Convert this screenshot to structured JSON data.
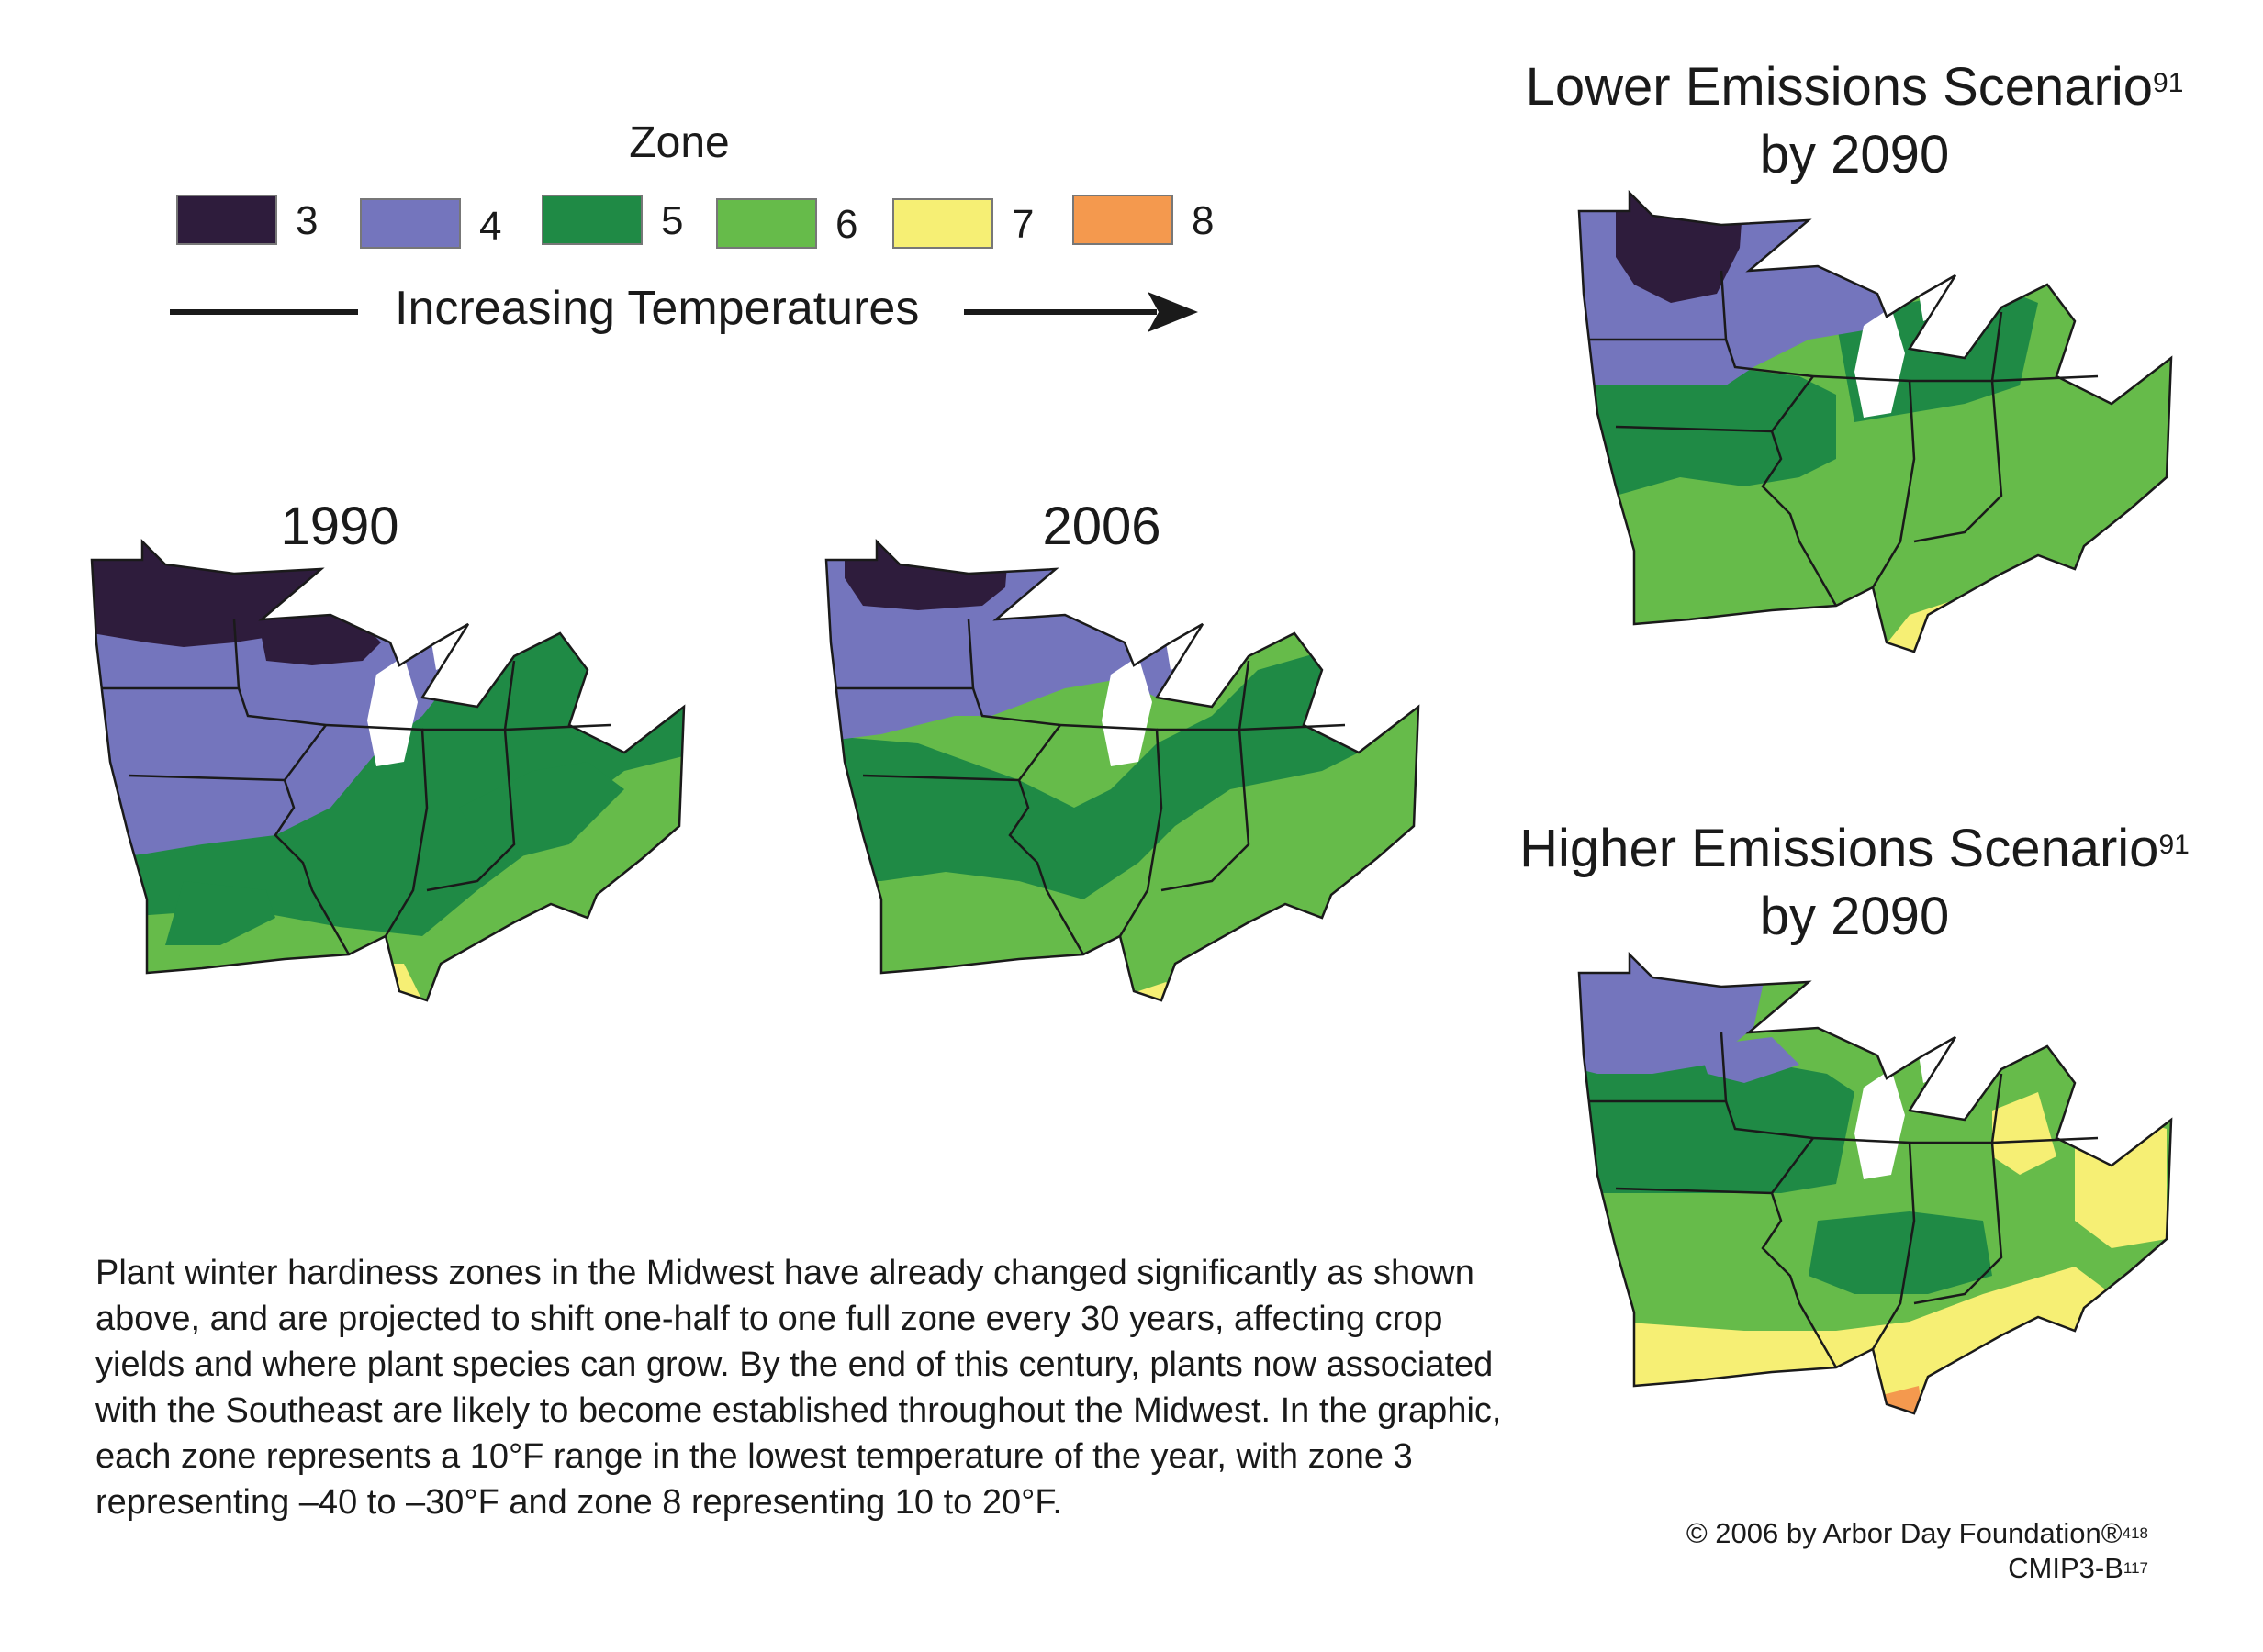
{
  "legend": {
    "title": "Zone",
    "zones": [
      {
        "label": "3",
        "color": "#2e1c3c"
      },
      {
        "label": "4",
        "color": "#7475bd"
      },
      {
        "label": "5",
        "color": "#1f8a45"
      },
      {
        "label": "6",
        "color": "#66bb4a"
      },
      {
        "label": "7",
        "color": "#f6ef74"
      },
      {
        "label": "8",
        "color": "#f4994e"
      }
    ],
    "arrow_label": "Increasing Temperatures"
  },
  "maps": {
    "y1990": {
      "title": "1990"
    },
    "y2006": {
      "title": "2006"
    },
    "lower": {
      "title_line1": "Lower Emissions Scenario",
      "title_sup": "91",
      "title_line2": "by 2090"
    },
    "higher": {
      "title_line1": "Higher Emissions Scenario",
      "title_sup": "91",
      "title_line2": "by 2090"
    }
  },
  "caption": "Plant winter hardiness zones in the Midwest have already changed significantly as shown above, and are projected to shift one-half to one full zone every 30 years, affecting crop yields and where plant species can grow. By the end of this century, plants now associated with the Southeast are likely to become established throughout the Midwest. In the graphic, each zone represents a 10°F range in the lowest temperature of the year, with zone 3 representing –40 to –30°F and zone 8 representing 10 to 20°F.",
  "credit": {
    "line1": "© 2006 by Arbor Day Foundation®",
    "line1_sup": "418",
    "line2": "CMIP3-B",
    "line2_sup": "117"
  }
}
